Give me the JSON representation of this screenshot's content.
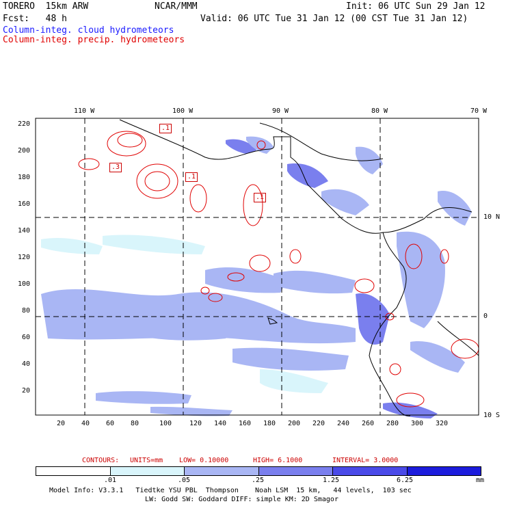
{
  "header": {
    "model": "TORERO  15km ARW",
    "org": "NCAR/MMM",
    "init": "Init: 06 UTC Sun 29 Jan 12",
    "fcst": "Fcst:   48 h",
    "valid": "Valid: 06 UTC Tue 31 Jan 12 (00 CST Tue 31 Jan 12)"
  },
  "legend": {
    "line1": "Column-integ. cloud hydrometeors",
    "line2": "Column-integ. precip. hydrometeors",
    "color1": "#1a1aff",
    "color2": "#e00000"
  },
  "map": {
    "lon_top": [
      "110 W",
      "100 W",
      "90 W",
      "80 W",
      "70 W"
    ],
    "lat_right": [
      "10 N",
      "0",
      "10 S"
    ],
    "y_ticks": [
      "220",
      "200",
      "180",
      "160",
      "140",
      "120",
      "100",
      "80",
      "60",
      "40",
      "20"
    ],
    "x_ticks": [
      "20",
      "40",
      "60",
      "80",
      "100",
      "120",
      "140",
      "160",
      "180",
      "200",
      "220",
      "240",
      "260",
      "280",
      "300",
      "320"
    ],
    "contour_labels": [
      ".1",
      ".3",
      ".1",
      ".1"
    ]
  },
  "contours_info": {
    "label": "CONTOURS:",
    "units": "UNITS=mm",
    "low": "LOW= 0.10000",
    "high": "HIGH= 6.1000",
    "interval": "INTERVAL= 3.0000"
  },
  "colorbar": {
    "labels": [
      ".01",
      ".05",
      ".25",
      "1.25",
      "6.25"
    ],
    "unit": "mm",
    "colors": [
      "#ffffff",
      "#d9f5fb",
      "#a9b6f4",
      "#7a7fee",
      "#4a4ae8",
      "#1c1cdc"
    ]
  },
  "footer": {
    "line1": "Model Info: V3.3.1   Tiedtke YSU PBL  Thompson    Noah LSM  15 km,   44 levels,  103 sec",
    "line2": "LW: Godd SW: Goddard DIFF: simple KM: 2D Smagor"
  }
}
